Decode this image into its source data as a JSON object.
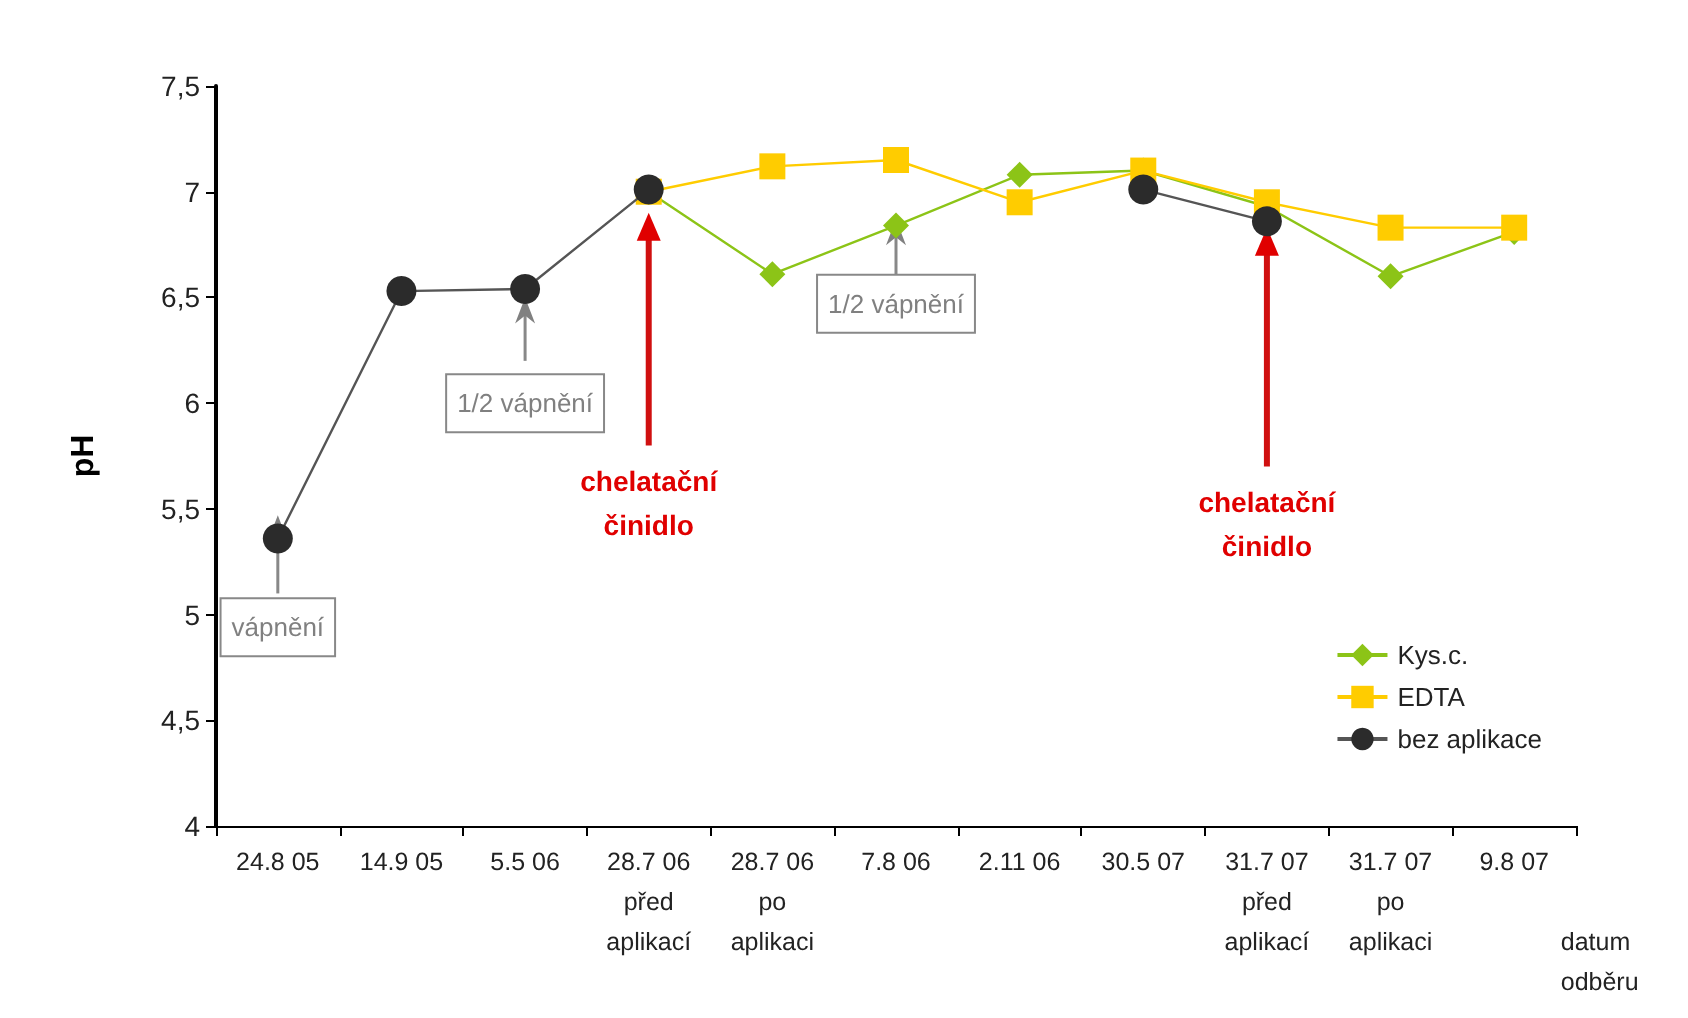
{
  "chart_data": {
    "type": "line",
    "ylabel": "pH",
    "xlabel": "datum\nodběru",
    "categories": [
      "24.8 05",
      "14.9 05",
      "5.5 06",
      "28.7 06\npřed\naplikací",
      "28.7 06\npo\naplikaci",
      "7.8 06",
      "2.11 06",
      "30.5 07",
      "31.7 07\npřed\naplikací",
      "31.7 07\npo\naplikaci",
      "9.8 07"
    ],
    "series": [
      {
        "name": "Kys.c.",
        "color": "#8cc417",
        "marker": "diamond",
        "values": [
          null,
          null,
          null,
          7.0,
          6.61,
          6.84,
          7.08,
          7.1,
          6.93,
          6.6,
          6.81
        ]
      },
      {
        "name": "EDTA",
        "color": "#ffcc00",
        "marker": "square",
        "values": [
          null,
          null,
          null,
          7.0,
          7.12,
          7.15,
          6.95,
          7.1,
          6.95,
          6.83,
          6.83
        ]
      },
      {
        "name": "bez aplikace",
        "type": "line",
        "color": "#2b2b2b",
        "marker": "circle",
        "values": [
          5.36,
          6.53,
          6.54,
          7.01,
          null,
          null,
          null,
          7.01,
          6.86,
          null,
          null
        ]
      }
    ],
    "ylim": [
      4,
      7.5
    ],
    "yticks": [
      4,
      {
        "value": 4.5,
        "label": "4,5"
      },
      5,
      {
        "value": 5.5,
        "label": "5,5"
      },
      6,
      {
        "value": 6.5,
        "label": "6,5"
      },
      7,
      {
        "value": 7.5,
        "label": "7,5"
      }
    ],
    "grid": false,
    "legend": "bottom right",
    "annotations": [
      {
        "text": "vápnění",
        "y": 5.47
      },
      {
        "text": "1/2 vápnění",
        "y": 6.5
      },
      {
        "text": "chelatační\nčinidlo",
        "y": 6.9
      },
      {
        "text": "1/2 vápnění",
        "y": 6.87
      },
      {
        "text": "chelatační\nčinidlo",
        "y": 6.83
      }
    ]
  }
}
